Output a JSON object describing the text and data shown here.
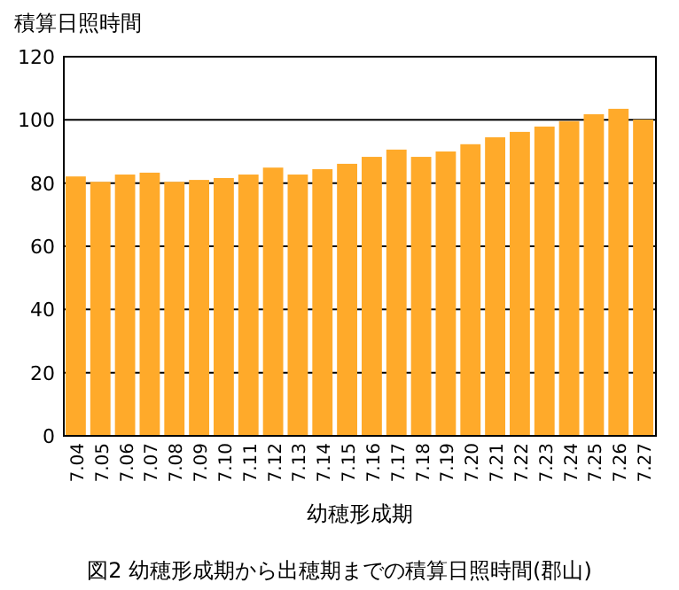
{
  "chart_data": {
    "type": "bar",
    "title": "図2 幼穂形成期から出穂期までの積算日照時間(郡山)",
    "xlabel": "幼穂形成期",
    "ylabel": "積算日照時間",
    "categories": [
      "7.04",
      "7.05",
      "7.06",
      "7.07",
      "7.08",
      "7.09",
      "7.10",
      "7.11",
      "7.12",
      "7.13",
      "7.14",
      "7.15",
      "7.16",
      "7.17",
      "7.18",
      "7.19",
      "7.20",
      "7.21",
      "7.22",
      "7.23",
      "7.24",
      "7.25",
      "7.26",
      "7.27"
    ],
    "values": [
      82.1,
      80.4,
      82.7,
      83.3,
      80.4,
      81.0,
      81.6,
      82.7,
      84.9,
      82.7,
      84.4,
      86.1,
      88.3,
      90.6,
      88.3,
      90.0,
      92.3,
      94.5,
      96.2,
      97.9,
      99.6,
      101.8,
      103.5,
      100.1
    ],
    "color": "#ffaa2a",
    "ylim": [
      0,
      120
    ],
    "yticks": [
      0,
      20,
      40,
      60,
      80,
      100,
      120
    ],
    "grid": "y"
  }
}
